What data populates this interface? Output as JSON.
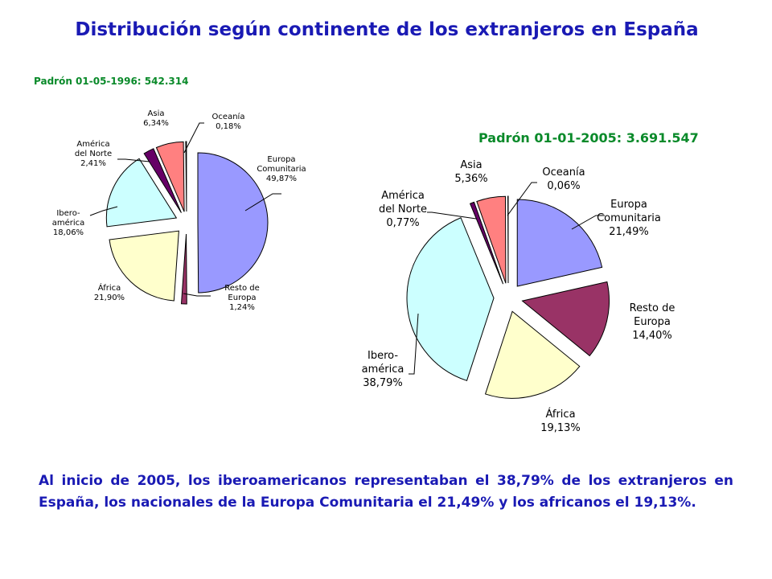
{
  "page": {
    "title": "Distribución según continente de los extranjeros en España",
    "summary": "Al inicio de 2005, los iberoamericanos representaban el 38,79% de los extranjeros en España, los nacionales de la Europa Comunitaria el 21,49% y los africanos el 19,13%."
  },
  "colors": {
    "title": "#1a1ab4",
    "chart_title": "#0a8a2a",
    "Europa Comunitaria": "#9999ff",
    "Resto de Europa": "#993366",
    "África": "#ffffcc",
    "Ibero-américa": "#ccffff",
    "América del Norte": "#660066",
    "Asia": "#ff8080",
    "Oceanía": "#0066cc"
  },
  "chart_data": [
    {
      "type": "pie",
      "title": "Padrón 01-05-1996: 542.314",
      "slices": [
        {
          "key": "Europa Comunitaria",
          "lines": [
            "Europa",
            "Comunitaria",
            "49,87%"
          ],
          "value": 49.87
        },
        {
          "key": "Resto de Europa",
          "lines": [
            "Resto de",
            "Europa",
            "1,24%"
          ],
          "value": 1.24
        },
        {
          "key": "África",
          "lines": [
            "África",
            "21,90%"
          ],
          "value": 21.9
        },
        {
          "key": "Ibero-américa",
          "lines": [
            "Ibero-",
            "américa",
            "18,06%"
          ],
          "value": 18.06
        },
        {
          "key": "América del Norte",
          "lines": [
            "América",
            "del Norte",
            "2,41%"
          ],
          "value": 2.41
        },
        {
          "key": "Asia",
          "lines": [
            "Asia",
            "6,34%"
          ],
          "value": 6.34
        },
        {
          "key": "Oceanía",
          "lines": [
            "Oceanía",
            "0,18%"
          ],
          "value": 0.18
        }
      ]
    },
    {
      "type": "pie",
      "title": "Padrón 01-01-2005: 3.691.547",
      "slices": [
        {
          "key": "Europa Comunitaria",
          "lines": [
            "Europa",
            "Comunitaria",
            "21,49%"
          ],
          "value": 21.49
        },
        {
          "key": "Resto de Europa",
          "lines": [
            "Resto de",
            "Europa",
            "14,40%"
          ],
          "value": 14.4
        },
        {
          "key": "África",
          "lines": [
            "África",
            "19,13%"
          ],
          "value": 19.13
        },
        {
          "key": "Ibero-américa",
          "lines": [
            "Ibero-",
            "américa",
            "38,79%"
          ],
          "value": 38.79
        },
        {
          "key": "América del Norte",
          "lines": [
            "América",
            "del Norte",
            "0,77%"
          ],
          "value": 0.77
        },
        {
          "key": "Asia",
          "lines": [
            "Asia",
            "5,36%"
          ],
          "value": 5.36
        },
        {
          "key": "Oceanía",
          "lines": [
            "Oceanía",
            "0,06%"
          ],
          "value": 0.06
        }
      ]
    }
  ]
}
